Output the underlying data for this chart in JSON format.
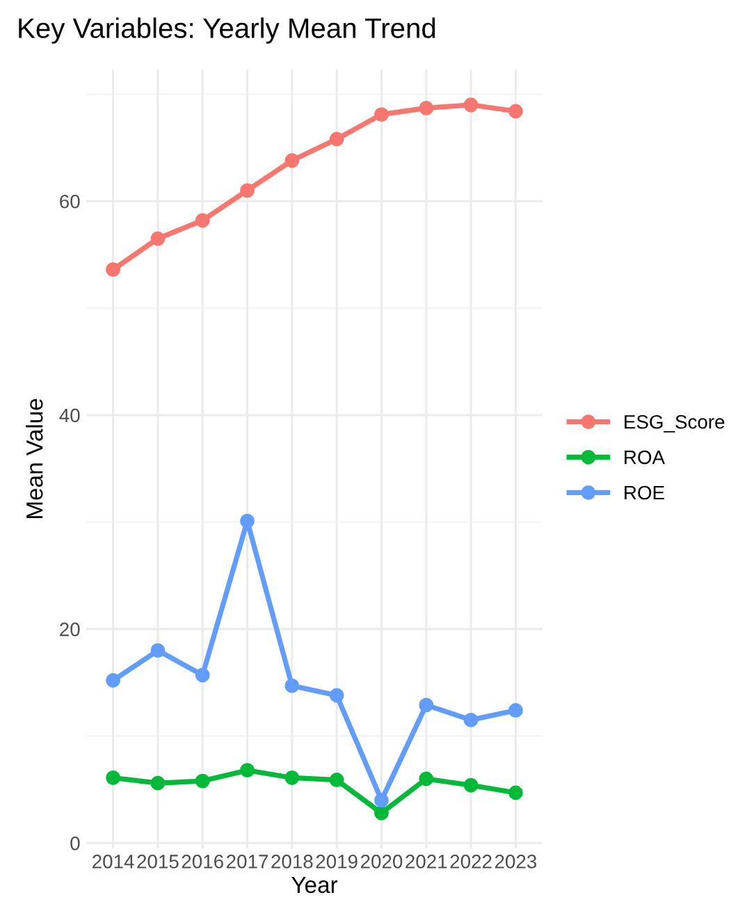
{
  "chart_data": {
    "type": "line",
    "title": "Key Variables: Yearly Mean Trend",
    "xlabel": "Year",
    "ylabel": "Mean Value",
    "categories": [
      "2014",
      "2015",
      "2016",
      "2017",
      "2018",
      "2019",
      "2020",
      "2021",
      "2022",
      "2023"
    ],
    "series": [
      {
        "name": "ESG_Score",
        "color": "#f8766d",
        "values": [
          53.6,
          56.5,
          58.2,
          61.0,
          63.8,
          65.8,
          68.1,
          68.7,
          69.0,
          68.4
        ]
      },
      {
        "name": "ROA",
        "color": "#00ba38",
        "values": [
          6.1,
          5.6,
          5.8,
          6.8,
          6.1,
          5.9,
          2.8,
          6.0,
          5.4,
          4.7
        ]
      },
      {
        "name": "ROE",
        "color": "#619cff",
        "values": [
          15.2,
          18.0,
          15.7,
          30.1,
          14.7,
          13.8,
          4.0,
          12.9,
          11.5,
          12.4
        ]
      }
    ],
    "ylim": [
      -0.5,
      72.3
    ],
    "yticks": [
      0,
      20,
      40,
      60
    ],
    "grid": true,
    "legend": "right",
    "marker": "circle",
    "line_style": "solid"
  }
}
